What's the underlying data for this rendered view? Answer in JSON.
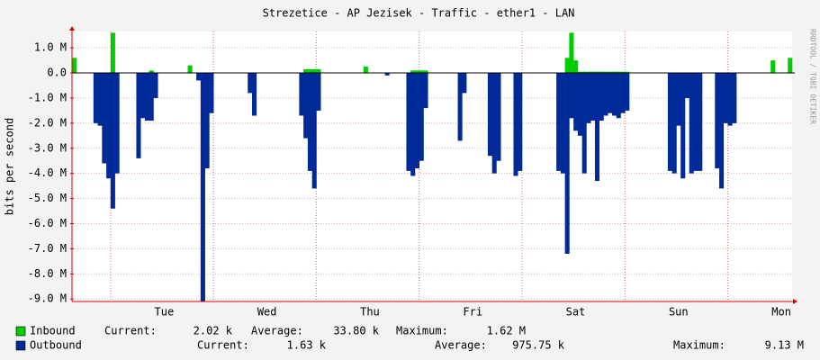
{
  "chart_data": {
    "type": "area",
    "title": "Strezetice - AP Jezisek - Traffic - ether1 - LAN",
    "ylabel": "bits per second",
    "watermark": "RRDTOOL / TOBI OETIKER",
    "categories": [
      null,
      null,
      null,
      null,
      null,
      null,
      null,
      null,
      null,
      null,
      null,
      null,
      null,
      null,
      null,
      null,
      null,
      null,
      null,
      null,
      null,
      "Tue",
      null,
      null,
      null,
      null,
      null,
      null,
      null,
      null,
      null,
      null,
      null,
      null,
      null,
      null,
      null,
      null,
      null,
      null,
      null,
      null,
      null,
      null,
      null,
      "Wed",
      null,
      null,
      null,
      null,
      null,
      null,
      null,
      null,
      null,
      null,
      null,
      null,
      null,
      null,
      null,
      null,
      null,
      null,
      null,
      null,
      null,
      null,
      null,
      "Thu",
      null,
      null,
      null,
      null,
      null,
      null,
      null,
      null,
      null,
      null,
      null,
      null,
      null,
      null,
      null,
      null,
      null,
      null,
      null,
      null,
      null,
      null,
      null,
      "Fri",
      null,
      null,
      null,
      null,
      null,
      null,
      null,
      null,
      null,
      null,
      null,
      null,
      null,
      null,
      null,
      null,
      null,
      null,
      null,
      null,
      null,
      null,
      null,
      "Sat",
      null,
      null,
      null,
      null,
      null,
      null,
      null,
      null,
      null,
      null,
      null,
      null,
      null,
      null,
      null,
      null,
      null,
      null,
      null,
      null,
      null,
      null,
      null,
      "Sun",
      null,
      null,
      null,
      null,
      null,
      null,
      null,
      null,
      null,
      null,
      null,
      null,
      null,
      null,
      null,
      null,
      null,
      null,
      null,
      null,
      null,
      null,
      null,
      "Mon",
      null,
      null
    ],
    "series": [
      {
        "name": "Inbound",
        "color": "#00cc00",
        "values": [
          0.6,
          0,
          0,
          0,
          0,
          0,
          0,
          0,
          0,
          1.6,
          0,
          0,
          0,
          0,
          0,
          0,
          0,
          0,
          0.1,
          0,
          0,
          0,
          0,
          0,
          0,
          0,
          0,
          0.3,
          0,
          0,
          0,
          0,
          0,
          0,
          0,
          0,
          0,
          0,
          0,
          0,
          0,
          0,
          0,
          0,
          0,
          0,
          0,
          0,
          0,
          0,
          0,
          0,
          0,
          0,
          0.15,
          0.15,
          0.15,
          0.15,
          0,
          0,
          0,
          0,
          0,
          0,
          0,
          0,
          0,
          0,
          0.25,
          0,
          0,
          0,
          0,
          0,
          0,
          0,
          0,
          0,
          0,
          0.1,
          0.1,
          0.1,
          0.1,
          0,
          0,
          0,
          0,
          0,
          0,
          0,
          0,
          0,
          0,
          0,
          0,
          0,
          0,
          0,
          0,
          0,
          0,
          0,
          0,
          0,
          0,
          0,
          0,
          0,
          0,
          0,
          0,
          0,
          0,
          0,
          0,
          0.6,
          1.6,
          0.5,
          0.05,
          0.05,
          0.05,
          0.05,
          0.05,
          0.05,
          0.05,
          0.05,
          0.05,
          0.05,
          0.05,
          0.05,
          0,
          0,
          0,
          0,
          0,
          0,
          0,
          0,
          0,
          0,
          0,
          0,
          0,
          0,
          0,
          0,
          0,
          0,
          0,
          0,
          0,
          0,
          0,
          0,
          0,
          0,
          0,
          0,
          0,
          0,
          0,
          0,
          0,
          0.5,
          0,
          0,
          0,
          0.6
        ],
        "stats": [
          {
            "label": "Current:",
            "value": "2.02 k"
          },
          {
            "label": "Average:",
            "value": "33.80 k"
          },
          {
            "label": "Maximum:",
            "value": "1.62 M"
          }
        ]
      },
      {
        "name": "Outbound",
        "color": "#002a97",
        "values": [
          0,
          0,
          0,
          0,
          0,
          -2.0,
          -2.1,
          -3.6,
          -4.2,
          -5.4,
          -4.0,
          0,
          0,
          0,
          0,
          -3.4,
          -1.8,
          -1.9,
          -1.9,
          -1.0,
          0,
          0,
          0,
          0,
          0,
          0,
          0,
          0,
          0,
          -0.3,
          -9.1,
          -3.8,
          -1.6,
          0,
          0,
          0,
          0,
          0,
          0,
          0,
          0,
          -0.8,
          -1.7,
          0,
          0,
          0,
          0,
          0,
          0,
          0,
          0,
          0,
          0,
          -1.7,
          -2.6,
          -3.9,
          -4.6,
          -1.5,
          0,
          0,
          0,
          0,
          0,
          0,
          0,
          0,
          0,
          0,
          0,
          0,
          0,
          0,
          0,
          -0.1,
          0,
          0,
          0,
          0,
          -3.9,
          -4.1,
          -3.8,
          -3.5,
          -1.4,
          0,
          0,
          0,
          0,
          0,
          0,
          0,
          -2.7,
          -0.8,
          0,
          0,
          0,
          0,
          0,
          -3.3,
          -4.0,
          -3.5,
          0,
          0,
          0,
          -4.1,
          -3.9,
          0,
          0,
          0,
          0,
          0,
          0,
          0,
          0,
          -3.9,
          -4.0,
          -7.2,
          -1.8,
          -2.3,
          -2.5,
          -4.0,
          -2.0,
          -1.9,
          -4.3,
          -1.9,
          -1.7,
          -1.6,
          -1.7,
          -1.8,
          -1.6,
          -1.5,
          0,
          0,
          0,
          0,
          0,
          0,
          0,
          0,
          0,
          -3.9,
          -4.0,
          -2.1,
          -4.2,
          -1.0,
          -4.0,
          -3.9,
          -3.9,
          0,
          0,
          0,
          -3.8,
          -4.6,
          -2.0,
          -2.1,
          -2.0,
          0,
          0,
          0,
          0,
          0,
          0,
          0,
          0,
          0,
          0,
          0,
          0,
          0
        ],
        "stats": [
          {
            "label": "Current:",
            "value": "1.63 k"
          },
          {
            "label": "Average:",
            "value": "975.75 k"
          },
          {
            "label": "Maximum:",
            "value": "9.13 M"
          }
        ]
      }
    ],
    "ylim": [
      -9.1,
      1.65
    ],
    "yticks": [
      {
        "value": 1,
        "label": "1.0 M"
      },
      {
        "value": 0,
        "label": "0.0"
      },
      {
        "value": -1,
        "label": "-1.0 M"
      },
      {
        "value": -2,
        "label": "-2.0 M"
      },
      {
        "value": -3,
        "label": "-3.0 M"
      },
      {
        "value": -4,
        "label": "-4.0 M"
      },
      {
        "value": -5,
        "label": "-5.0 M"
      },
      {
        "value": -6,
        "label": "-6.0 M"
      },
      {
        "value": -7,
        "label": "-7.0 M"
      },
      {
        "value": -8,
        "label": "-8.0 M"
      },
      {
        "value": -9,
        "label": "-9.0 M"
      }
    ],
    "grid": true
  }
}
